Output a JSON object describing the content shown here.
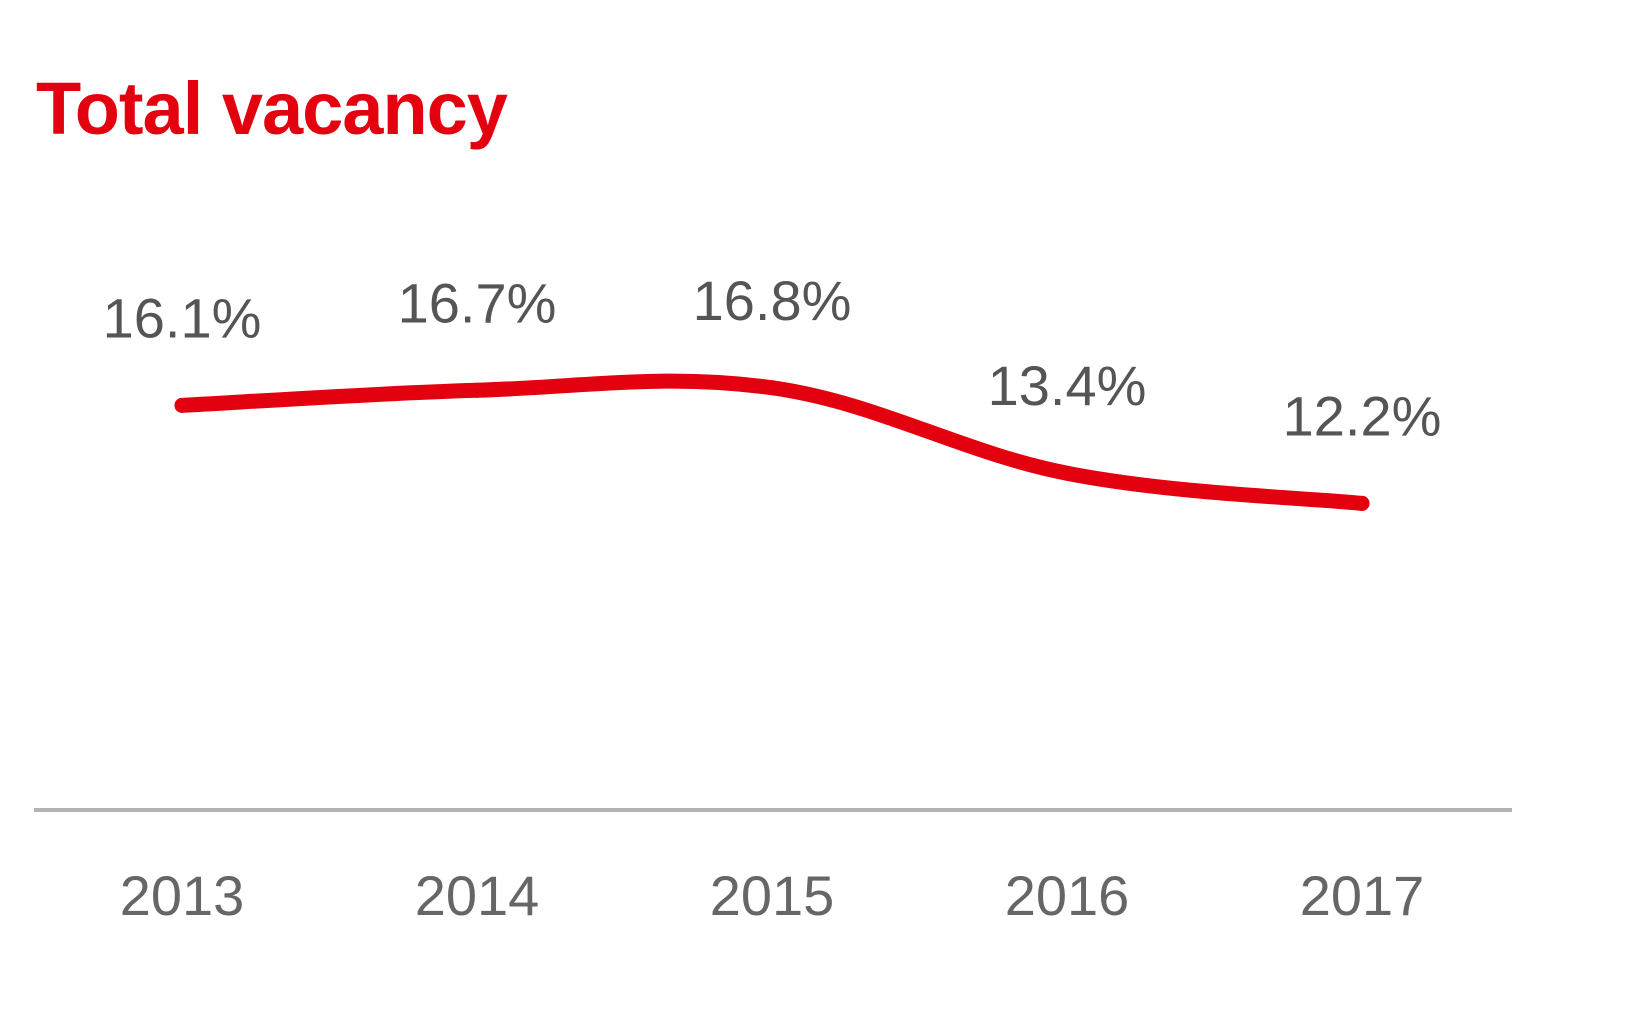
{
  "chart_data": {
    "type": "line",
    "title": "Total vacancy",
    "xlabel": "",
    "ylabel": "",
    "categories": [
      "2013",
      "2014",
      "2015",
      "2016",
      "2017"
    ],
    "series": [
      {
        "values": [
          16.1,
          16.7,
          16.8,
          13.4,
          12.2
        ],
        "labels": [
          "16.1%",
          "16.7%",
          "16.8%",
          "13.4%",
          "12.2%"
        ]
      }
    ],
    "ylim": [
      0,
      30
    ],
    "grid": false,
    "legend": "none",
    "colors": {
      "title": "#e3000f",
      "line": "#e3000f",
      "axis": "#b3b3b3",
      "label_text": "#555555",
      "tick_text": "#666666"
    }
  }
}
